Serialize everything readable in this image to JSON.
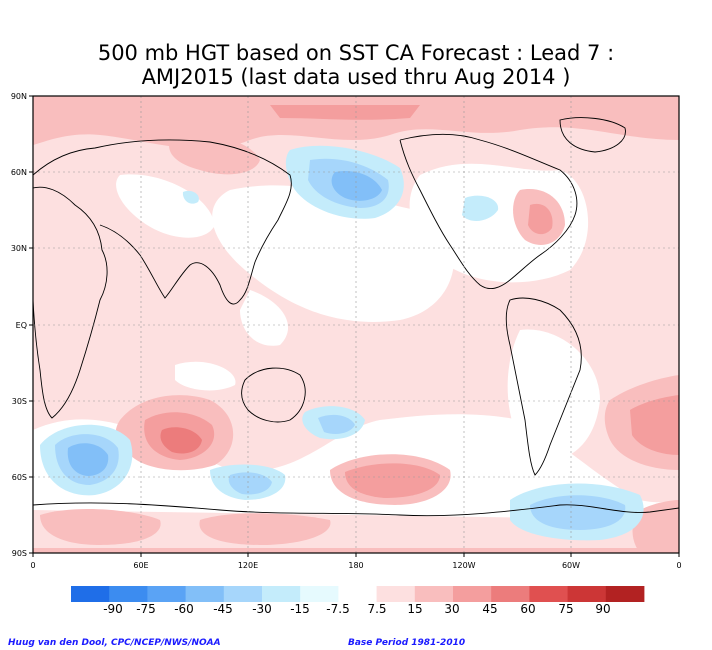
{
  "title_line1": "500 mb HGT based on SST CA Forecast : Lead 7 :",
  "title_line2": "AMJ2015 (last data used thru Aug 2014 )",
  "lat_labels": [
    "90N",
    "60N",
    "30N",
    "EQ",
    "30S",
    "60S",
    "90S"
  ],
  "lon_labels": [
    "0",
    "60E",
    "120E",
    "180",
    "120W",
    "60W",
    "0"
  ],
  "legend": {
    "labels": [
      "-90",
      "-75",
      "-60",
      "-45",
      "-30",
      "-15",
      "-7.5",
      "7.5",
      "15",
      "30",
      "45",
      "60",
      "75",
      "90"
    ],
    "colors": [
      "#1f6ee8",
      "#3c8cf0",
      "#5aa3f5",
      "#82bff8",
      "#a6d6fb",
      "#c4ecfb",
      "#e6fafe",
      "#ffffff",
      "#fde0e0",
      "#f9bebe",
      "#f49e9e",
      "#ec7c7c",
      "#e05050",
      "#cc3636",
      "#b22222"
    ]
  },
  "credit_left": "Huug van den Dool, CPC/NCEP/NWS/NOAA",
  "credit_right": "Base Period 1981-2010"
}
